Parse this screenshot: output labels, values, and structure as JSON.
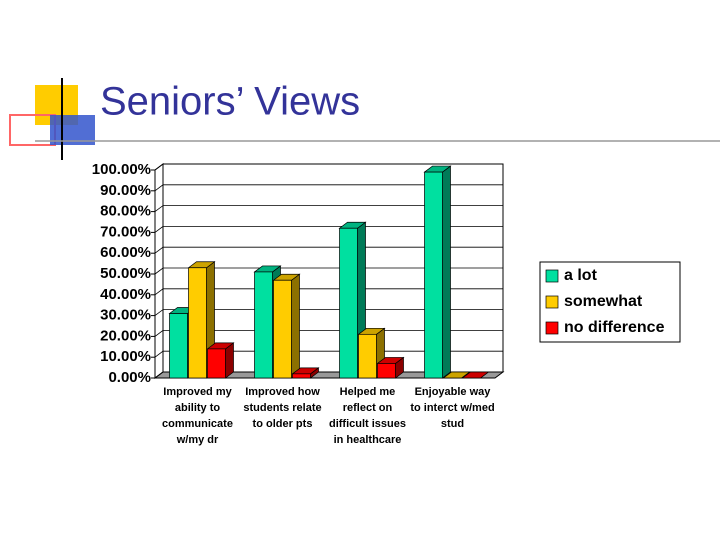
{
  "title": "Seniors’ Views",
  "chart_data": {
    "type": "bar3d",
    "categories": [
      "Improved my ability to communicate w/my dr",
      "Improved how students relate to older pts",
      "Helped me reflect on difficult issues in healthcare",
      "Enjoyable way to interct w/med stud"
    ],
    "series": [
      {
        "name": "a lot",
        "color": "#00e0a0",
        "values": [
          31,
          51,
          72,
          99
        ]
      },
      {
        "name": "somewhat",
        "color": "#ffcc00",
        "values": [
          53,
          47,
          21,
          0
        ]
      },
      {
        "name": "no difference",
        "color": "#ff0000",
        "values": [
          14,
          2,
          7,
          0
        ]
      }
    ],
    "ylim": [
      0,
      100
    ],
    "yticks": [
      {
        "value": 0,
        "label": "0.00%"
      },
      {
        "value": 10,
        "label": "10.00%"
      },
      {
        "value": 20,
        "label": "20.00%"
      },
      {
        "value": 30,
        "label": "30.00%"
      },
      {
        "value": 40,
        "label": "40.00%"
      },
      {
        "value": 50,
        "label": "50.00%"
      },
      {
        "value": 60,
        "label": "60.00%"
      },
      {
        "value": 70,
        "label": "70.00%"
      },
      {
        "value": 80,
        "label": "80.00%"
      },
      {
        "value": 90,
        "label": "90.00%"
      },
      {
        "value": 100,
        "label": "100.00%"
      }
    ],
    "grid": true,
    "legend": "right"
  }
}
